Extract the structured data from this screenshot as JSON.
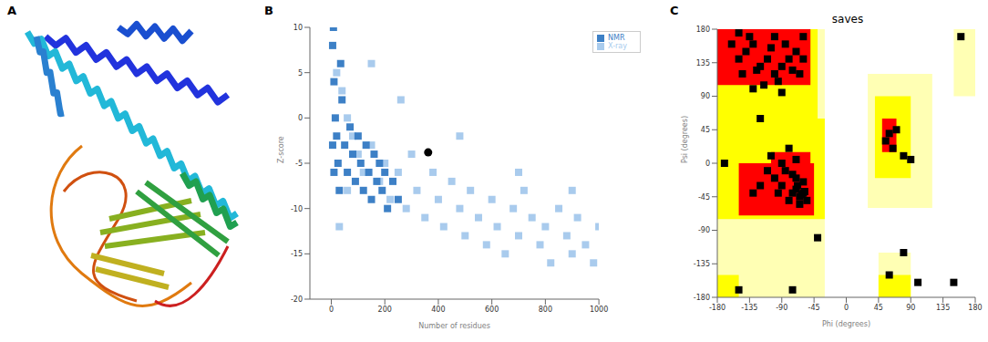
{
  "panel_labels": [
    "A",
    "B",
    "C"
  ],
  "chart_data": [
    {
      "type": "scatter",
      "x_label": "Number of residues",
      "y_label": "Z-score",
      "xlim": [
        -80,
        1000
      ],
      "xticks": [
        0,
        200,
        400,
        600,
        800,
        1000
      ],
      "ylim": [
        -20,
        10
      ],
      "yticks": [
        -20,
        -15,
        -10,
        -5,
        0,
        5,
        10
      ],
      "legend": "upper right",
      "series": [
        {
          "name": "X-ray",
          "color": "#a9cbed",
          "marker": "square",
          "x": [
            20,
            40,
            60,
            80,
            100,
            120,
            150,
            180,
            200,
            220,
            250,
            280,
            300,
            320,
            350,
            380,
            400,
            420,
            450,
            480,
            500,
            520,
            550,
            580,
            600,
            620,
            650,
            680,
            700,
            720,
            750,
            780,
            800,
            820,
            850,
            880,
            900,
            920,
            950,
            980,
            1000,
            260,
            150,
            480,
            700,
            900,
            60,
            30
          ],
          "values": [
            5,
            3,
            0,
            -2,
            -4,
            -6,
            -3,
            -7,
            -5,
            -9,
            -6,
            -10,
            -4,
            -8,
            -11,
            -6,
            -9,
            -12,
            -7,
            -10,
            -13,
            -8,
            -11,
            -14,
            -9,
            -12,
            -15,
            -10,
            -13,
            -8,
            -11,
            -14,
            -12,
            -16,
            -10,
            -13,
            -15,
            -11,
            -14,
            -16,
            -12,
            2,
            6,
            -2,
            -6,
            -8,
            -8,
            -12
          ]
        },
        {
          "name": "NMR",
          "color": "#3d80c6",
          "marker": "square",
          "x": [
            5,
            10,
            15,
            20,
            25,
            30,
            40,
            50,
            60,
            70,
            80,
            90,
            100,
            110,
            120,
            130,
            140,
            150,
            160,
            170,
            180,
            190,
            200,
            210,
            230,
            250,
            5,
            10,
            35,
            8
          ],
          "values": [
            8,
            4,
            0,
            -2,
            -5,
            -8,
            2,
            -3,
            -6,
            -1,
            -4,
            -7,
            -2,
            -5,
            -8,
            -3,
            -6,
            -9,
            -4,
            -7,
            -5,
            -8,
            -6,
            -10,
            -7,
            -9,
            -3,
            -6,
            6,
            10
          ]
        },
        {
          "color": "#000000",
          "marker": "circle",
          "x": [
            362
          ],
          "values": [
            -3.8
          ]
        }
      ]
    },
    {
      "type": "scatter",
      "title": "saves",
      "x_label": "Phi (degrees)",
      "y_label": "Psi (degrees)",
      "xlim": [
        -180,
        180
      ],
      "xticks": [
        -180,
        -135,
        -90,
        -45,
        0,
        45,
        90,
        135,
        180
      ],
      "ylim": [
        -180,
        180
      ],
      "yticks": [
        -180,
        -135,
        -90,
        -45,
        0,
        45,
        90,
        135,
        180
      ],
      "regions": [
        {
          "color": "#ffffb4",
          "x": [
            -180,
            -30
          ],
          "y": [
            -180,
            180
          ]
        },
        {
          "color": "#ffffb4",
          "x": [
            30,
            120
          ],
          "y": [
            -60,
            120
          ]
        },
        {
          "color": "#ffffb4",
          "x": [
            150,
            180
          ],
          "y": [
            90,
            180
          ]
        },
        {
          "color": "#ffffb4",
          "x": [
            45,
            90
          ],
          "y": [
            -180,
            -120
          ]
        },
        {
          "color": "#ffff00",
          "x": [
            -180,
            -40
          ],
          "y": [
            60,
            180
          ]
        },
        {
          "color": "#ffff00",
          "x": [
            -180,
            -30
          ],
          "y": [
            -75,
            60
          ]
        },
        {
          "color": "#ffff00",
          "x": [
            -180,
            -150
          ],
          "y": [
            -180,
            -150
          ]
        },
        {
          "color": "#ffff00",
          "x": [
            40,
            90
          ],
          "y": [
            -20,
            90
          ]
        },
        {
          "color": "#ffff00",
          "x": [
            45,
            90
          ],
          "y": [
            -180,
            -150
          ]
        },
        {
          "color": "#ff0000",
          "x": [
            -180,
            -50
          ],
          "y": [
            105,
            180
          ]
        },
        {
          "color": "#ff0000",
          "x": [
            -150,
            -45
          ],
          "y": [
            -70,
            0
          ]
        },
        {
          "color": "#ff0000",
          "x": [
            -105,
            -50
          ],
          "y": [
            0,
            15
          ]
        },
        {
          "color": "#ff0000",
          "x": [
            50,
            70
          ],
          "y": [
            15,
            60
          ]
        }
      ],
      "series": [
        {
          "color": "#000000",
          "marker": "square",
          "x": [
            -120,
            -100,
            -140,
            -80,
            -130,
            -110,
            -90,
            -150,
            -70,
            -125,
            -135,
            -95,
            -105,
            -60,
            -145,
            -85,
            -115,
            -75,
            -160,
            -100,
            -65,
            -130,
            -90,
            -150,
            -60,
            -65,
            -70,
            -55,
            -75,
            -62,
            -68,
            -58,
            -80,
            -90,
            -100,
            -110,
            -85,
            -70,
            -60,
            -95,
            -120,
            -65,
            -75,
            -90,
            -105,
            -130,
            -80,
            -70,
            60,
            55,
            65,
            70,
            80,
            90,
            -150,
            -75,
            100,
            160,
            -170,
            -40,
            60,
            -120,
            80,
            150,
            -60
          ],
          "values": [
            130,
            120,
            150,
            140,
            160,
            140,
            130,
            140,
            150,
            125,
            170,
            110,
            155,
            140,
            120,
            160,
            105,
            125,
            160,
            170,
            120,
            100,
            95,
            175,
            -40,
            -45,
            -35,
            -50,
            -40,
            -42,
            -30,
            -38,
            -50,
            -30,
            -20,
            -10,
            -10,
            -20,
            -25,
            -40,
            -30,
            -55,
            -15,
            0,
            10,
            -40,
            20,
            5,
            40,
            30,
            20,
            45,
            10,
            5,
            -170,
            -170,
            -160,
            170,
            0,
            -100,
            -150,
            60,
            -120,
            -160,
            170
          ]
        }
      ]
    }
  ]
}
